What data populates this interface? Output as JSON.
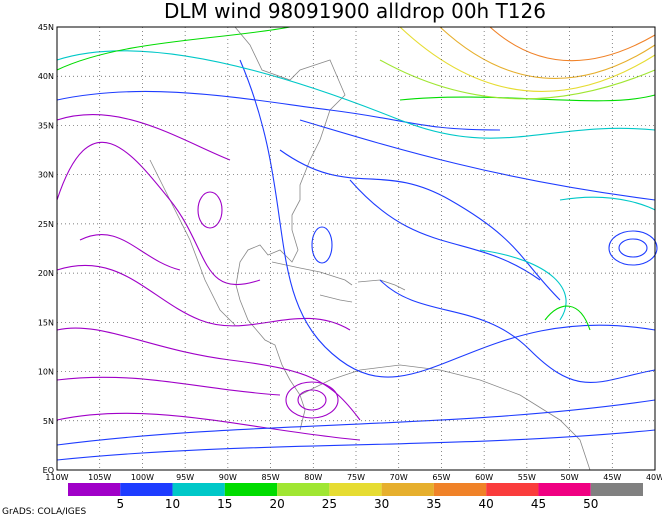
{
  "header": {
    "title": "DLM wind 98091900 alldrop 00h T126"
  },
  "axes": {
    "lon_labels": [
      "110W",
      "105W",
      "100W",
      "95W",
      "90W",
      "85W",
      "80W",
      "75W",
      "70W",
      "65W",
      "60W",
      "55W",
      "50W",
      "45W",
      "40W"
    ],
    "lat_labels": [
      "EQ",
      "5N",
      "10N",
      "15N",
      "20N",
      "25N",
      "30N",
      "35N",
      "40N",
      "45N"
    ]
  },
  "colorbar": {
    "colors": [
      "#a000c8",
      "#1e3cff",
      "#00c8c8",
      "#00dc00",
      "#a0e632",
      "#e6dc32",
      "#e6af2d",
      "#f08228",
      "#fa3c3c",
      "#f00082",
      "#808080"
    ],
    "labels": [
      5,
      10,
      15,
      20,
      25,
      30,
      35,
      40,
      45,
      50
    ]
  },
  "footer": {
    "credit": "GrADS: COLA/IGES"
  }
}
